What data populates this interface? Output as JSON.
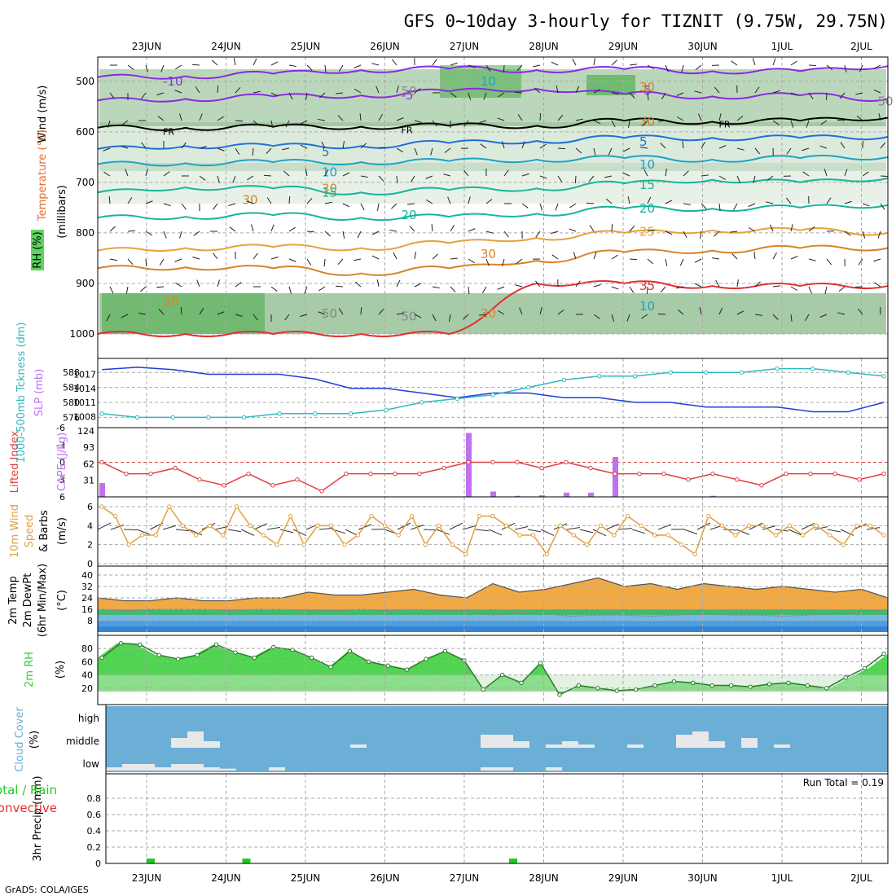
{
  "title": "GFS 0~10day 3-hourly for TIZNIT (9.75W, 29.75N)",
  "footer": "GrADS: COLA/IGES",
  "colors": {
    "rh_green": "#5fd35f",
    "temp_purple": "#8a2be2",
    "freezing": "#000000",
    "temp_blue": "#1e6fd9",
    "temp_cyan": "#1aa3c7",
    "temp_teal": "#18b49a",
    "temp_orange": "#e6a23c",
    "temp_dark_orange": "#d9822b",
    "temp_red": "#e03030",
    "slp": "#1f3fd8",
    "thickness": "#30b8c0",
    "lifted": "#e04040",
    "cape": "#c070f0",
    "wind": "#e0a040",
    "rh2m": "#32cd32",
    "cloud": "#6baed6",
    "precip": "#22cc22",
    "convective": "#e03030"
  },
  "chart_data": [
    {
      "type": "contour",
      "panel": "pressure-time",
      "x": [
        "23JUN",
        "24JUN",
        "25JUN",
        "26JUN",
        "27JUN",
        "28JUN",
        "29JUN",
        "30JUN",
        "1JUL",
        "2JUL"
      ],
      "ylabel": "(millibars)",
      "yticks": [
        "500",
        "600",
        "700",
        "800",
        "900",
        "1000"
      ],
      "legend_labels": [
        "Wind (m/s)",
        "Temperature (°C)",
        "RH (%)"
      ],
      "freezing_label": "FR",
      "isotherms": [
        {
          "label": "-10",
          "color_key": "temp_purple",
          "levels": [
            492,
            490,
            485,
            478,
            475,
            478,
            476,
            480,
            480,
            470
          ]
        },
        {
          "label": "-5",
          "color_key": "temp_purple",
          "levels": [
            538,
            535,
            530,
            528,
            520,
            515,
            525,
            530,
            528,
            535
          ]
        },
        {
          "label": "FR",
          "color_key": "freezing",
          "levels": [
            592,
            592,
            590,
            590,
            588,
            588,
            578,
            580,
            578,
            572
          ]
        },
        {
          "label": "5",
          "color_key": "temp_blue",
          "levels": [
            634,
            628,
            628,
            628,
            622,
            618,
            612,
            612,
            612,
            610
          ]
        },
        {
          "label": "10",
          "color_key": "temp_cyan",
          "levels": [
            664,
            662,
            660,
            660,
            658,
            655,
            652,
            655,
            652,
            650
          ]
        },
        {
          "label": "15",
          "color_key": "temp_teal",
          "levels": [
            720,
            710,
            712,
            720,
            715,
            712,
            702,
            695,
            700,
            692
          ]
        },
        {
          "label": "20",
          "color_key": "temp_teal",
          "levels": [
            770,
            768,
            765,
            770,
            768,
            762,
            752,
            752,
            750,
            745
          ]
        },
        {
          "label": "25",
          "color_key": "temp_orange",
          "levels": [
            835,
            830,
            828,
            830,
            820,
            810,
            800,
            795,
            795,
            800
          ]
        },
        {
          "label": "30",
          "color_key": "temp_dark_orange",
          "levels": [
            870,
            868,
            870,
            880,
            870,
            855,
            838,
            835,
            830,
            830
          ]
        },
        {
          "label": "35",
          "color_key": "temp_red",
          "levels": [
            1000,
            1000,
            1000,
            1000,
            1000,
            900,
            900,
            905,
            905,
            905
          ]
        }
      ],
      "inline_labels": [
        {
          "text": "-10",
          "x": "23JUN",
          "p": 500
        },
        {
          "text": "10",
          "x": "27JUN",
          "p": 500
        },
        {
          "text": "-5",
          "x": "26JUN",
          "p": 528
        },
        {
          "text": "-5",
          "x": "29JUN",
          "p": 518
        },
        {
          "text": "FR",
          "x": "23JUN",
          "p": 598
        },
        {
          "text": "FR",
          "x": "26JUN",
          "p": 595
        },
        {
          "text": "FR",
          "x": "30JUN",
          "p": 583
        },
        {
          "text": "5",
          "x": "25JUN",
          "p": 640
        },
        {
          "text": "5",
          "x": "29JUN",
          "p": 620
        },
        {
          "text": "10",
          "x": "25JUN",
          "p": 680
        },
        {
          "text": "10",
          "x": "29JUN",
          "p": 665
        },
        {
          "text": "15",
          "x": "25JUN",
          "p": 720
        },
        {
          "text": "15",
          "x": "29JUN",
          "p": 705
        },
        {
          "text": "20",
          "x": "26JUN",
          "p": 765
        },
        {
          "text": "20",
          "x": "29JUN",
          "p": 752
        },
        {
          "text": "25",
          "x": "29JUN",
          "p": 798
        },
        {
          "text": "30",
          "x": "27JUN",
          "p": 842
        },
        {
          "text": "35",
          "x": "29JUN",
          "p": 905
        },
        {
          "text": "30",
          "x": "29JUN",
          "p": 512
        },
        {
          "text": "50",
          "x": "26JUN",
          "p": 520
        },
        {
          "text": "30",
          "x": "24JUN",
          "p": 735
        },
        {
          "text": "30",
          "x": "25JUN",
          "p": 712
        },
        {
          "text": "30",
          "x": "23JUN",
          "p": 935
        },
        {
          "text": "50",
          "x": "25JUN",
          "p": 960
        },
        {
          "text": "50",
          "x": "26JUN",
          "p": 965
        },
        {
          "text": "30",
          "x": "27JUN",
          "p": 960
        },
        {
          "text": "10",
          "x": "29JUN",
          "p": 945
        },
        {
          "text": "50",
          "x": "2JUL",
          "p": 540
        },
        {
          "text": "30",
          "x": "29JUN",
          "p": 580
        }
      ]
    },
    {
      "type": "line",
      "panel": "slp-thickness",
      "ylabel_left": "1000-500mb Tckness (dm)",
      "ylabel_right": "SLP (mb)",
      "yticks_left": [
        576,
        580,
        584,
        588
      ],
      "yticks_right": [
        1008,
        1011,
        1014,
        1017
      ],
      "series": [
        {
          "name": "SLP",
          "color_key": "slp",
          "values": [
            1018,
            1018.5,
            1018,
            1017,
            1017,
            1017,
            1016,
            1014,
            1014,
            1013,
            1012,
            1013,
            1013,
            1012,
            1012,
            1011,
            1011,
            1010,
            1010,
            1010,
            1009,
            1009,
            1011
          ]
        },
        {
          "name": "Thickness",
          "color_key": "thickness",
          "values": [
            577,
            576,
            576,
            576,
            576,
            577,
            577,
            577,
            578,
            580,
            581,
            582,
            584,
            586,
            587,
            587,
            588,
            588,
            588,
            589,
            589,
            588,
            587
          ]
        }
      ]
    },
    {
      "type": "line+bar",
      "panel": "lifted-cape",
      "ylabel_left": "Lifted Index",
      "ylabel_right": "CAPE (J/kg)",
      "yticks_left": [
        "-6",
        "-3",
        "0",
        "3",
        "6"
      ],
      "yticks_right": [
        31,
        62,
        93,
        124
      ],
      "series": [
        {
          "name": "Lifted Index",
          "color_key": "lifted",
          "values": [
            0,
            2,
            2,
            1,
            3,
            4,
            2,
            4,
            3,
            5,
            2,
            2,
            2,
            2,
            1,
            0,
            0,
            0,
            1,
            0,
            1,
            2,
            2,
            2,
            3,
            2,
            3,
            4,
            2,
            2,
            2,
            3,
            2
          ]
        },
        {
          "name": "CAPE",
          "color_key": "cape",
          "values": [
            26,
            0,
            0,
            0,
            0,
            0,
            0,
            0,
            0,
            0,
            0,
            0,
            0,
            0,
            0,
            120,
            10,
            2,
            3,
            8,
            8,
            75,
            0,
            0,
            0,
            2,
            0,
            0,
            0,
            0,
            0,
            0,
            0
          ]
        }
      ]
    },
    {
      "type": "line",
      "panel": "10m-wind",
      "ylabel": "10m Wind Speed (m/s) & Barbs",
      "yticks": [
        0,
        2,
        4,
        6
      ],
      "series": [
        {
          "name": "10m Wind",
          "color_key": "wind",
          "values": [
            6,
            5,
            2,
            3,
            3,
            6,
            4,
            3,
            4,
            3,
            6,
            4,
            3,
            2,
            5,
            2,
            4,
            4,
            2,
            3,
            5,
            4,
            3,
            5,
            2,
            4,
            2,
            1,
            5,
            5,
            4,
            3,
            3,
            1,
            4,
            3,
            2,
            4,
            3,
            5,
            4,
            3,
            3,
            2,
            1,
            5,
            4,
            3,
            4,
            4,
            3,
            4,
            3,
            4,
            3,
            2,
            4,
            4,
            3
          ]
        }
      ]
    },
    {
      "type": "area",
      "panel": "2m-temp",
      "ylabel": "2m Temp 2m DewPt (6hr Min/Max) (°C)",
      "yticks": [
        8,
        16,
        24,
        32,
        40
      ],
      "series": [
        {
          "name": "2m Temp",
          "values": [
            24,
            22,
            22,
            24,
            22,
            22,
            24,
            24,
            28,
            26,
            26,
            28,
            30,
            26,
            24,
            34,
            28,
            30,
            34,
            38,
            32,
            34,
            30,
            34,
            32,
            30,
            32,
            30,
            28,
            30,
            24
          ]
        },
        {
          "name": "2m DewPt",
          "values": [
            16,
            15,
            16,
            16,
            16,
            15,
            16,
            16,
            15,
            15,
            16,
            15,
            16,
            15,
            15,
            12,
            14,
            13,
            11,
            12,
            12,
            11,
            12,
            13,
            12,
            12,
            11,
            12,
            13,
            14,
            16
          ]
        }
      ]
    },
    {
      "type": "area",
      "panel": "2m-rh",
      "ylabel": "2m RH (%)",
      "yticks": [
        20,
        40,
        60,
        80
      ],
      "series": [
        {
          "name": "2m RH",
          "color_key": "rh2m",
          "values": [
            66,
            88,
            86,
            70,
            64,
            70,
            86,
            74,
            66,
            82,
            78,
            66,
            52,
            76,
            60,
            54,
            48,
            64,
            76,
            62,
            18,
            40,
            28,
            58,
            10,
            24,
            20,
            16,
            18,
            24,
            30,
            28,
            24,
            24,
            22,
            26,
            28,
            24,
            20,
            36,
            50,
            72
          ]
        }
      ]
    },
    {
      "type": "bar",
      "panel": "cloud-cover",
      "ylabel": "Cloud Cover (%)",
      "yticks": [
        "high",
        "middle",
        "low"
      ],
      "series": [
        {
          "name": "middle",
          "values": [
            0,
            0,
            0,
            0,
            15,
            25,
            10,
            0,
            0,
            0,
            0,
            0,
            0,
            0,
            0,
            5,
            0,
            0,
            0,
            0,
            0,
            0,
            0,
            20,
            20,
            10,
            0,
            5,
            10,
            5,
            0,
            0,
            5,
            0,
            0,
            20,
            25,
            10,
            0,
            15,
            0,
            5,
            0,
            0,
            0,
            0,
            0,
            0
          ]
        },
        {
          "name": "low",
          "values": [
            5,
            10,
            10,
            5,
            10,
            10,
            5,
            3,
            0,
            0,
            5,
            0,
            0,
            0,
            0,
            0,
            0,
            0,
            0,
            0,
            0,
            0,
            0,
            5,
            5,
            0,
            0,
            5,
            0,
            0,
            0,
            0,
            0,
            0,
            0,
            0,
            0,
            0,
            0,
            0,
            0,
            0,
            0,
            0,
            0,
            0,
            0,
            0
          ]
        }
      ]
    },
    {
      "type": "bar",
      "panel": "precip",
      "ylabel": "3hr Precip (mm)",
      "legend_labels": [
        "Total / Rain",
        "Convective"
      ],
      "annotation": "Run Total = 0.19",
      "yticks": [
        "0",
        "0.2",
        "0.4",
        "0.6",
        "0.8"
      ],
      "series": [
        {
          "name": "Total / Rain",
          "color_key": "precip",
          "values": [
            0.06,
            0.06,
            0.06
          ]
        }
      ],
      "x_positions": [
        "23JUN",
        "24JUN",
        "27JUN"
      ]
    }
  ]
}
